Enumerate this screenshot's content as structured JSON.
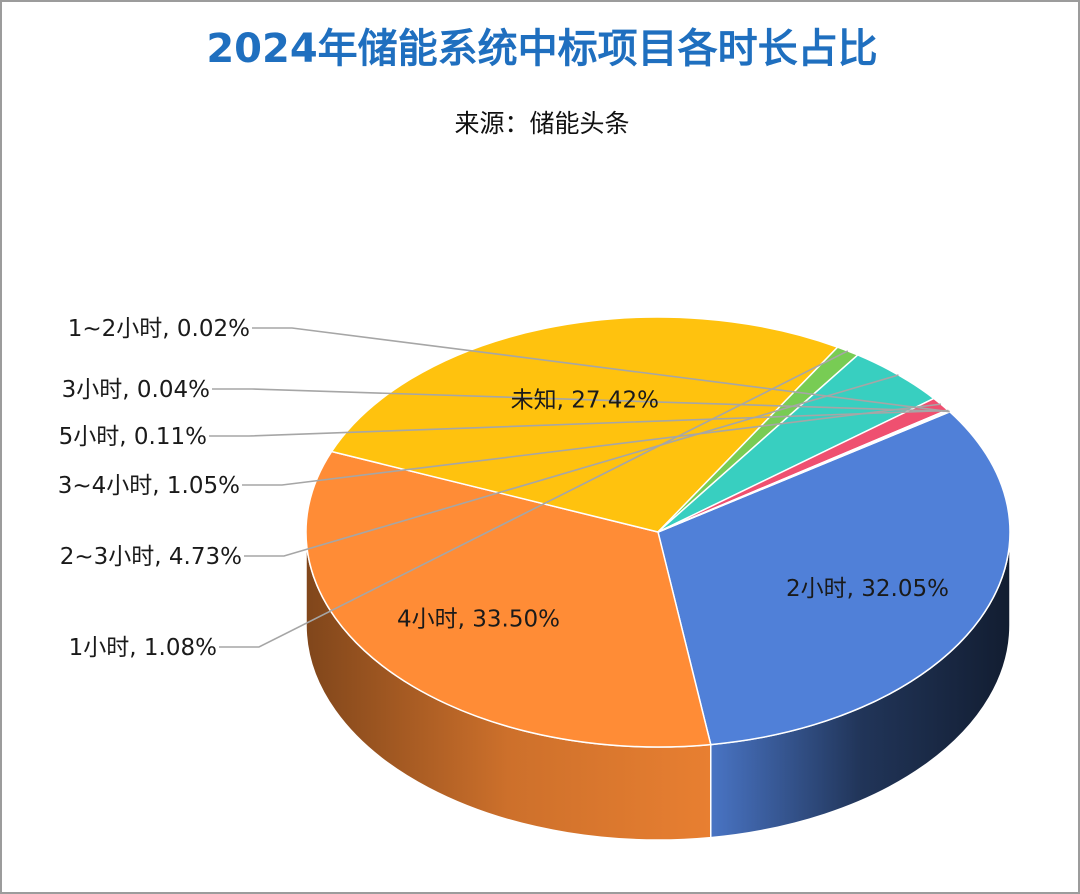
{
  "chart_data": {
    "type": "pie",
    "style": "3d",
    "title": "2024年储能系统中标项目各时长占比",
    "subtitle": "来源：储能头条",
    "slices": [
      {
        "name": "2小时",
        "value": 32.05,
        "label": "2小时, 32.05%",
        "color": "#5080d8"
      },
      {
        "name": "4小时",
        "value": 33.5,
        "label": "4小时, 33.50%",
        "color": "#ff8c36"
      },
      {
        "name": "未知",
        "value": 27.42,
        "label": "未知, 27.42%",
        "color": "#ffc20e"
      },
      {
        "name": "1小时",
        "value": 1.08,
        "label": "1小时, 1.08%",
        "color": "#78cc54"
      },
      {
        "name": "2~3小时",
        "value": 4.73,
        "label": "2~3小时, 4.73%",
        "color": "#38cfc0"
      },
      {
        "name": "3~4小时",
        "value": 1.05,
        "label": "3~4小时, 1.05%",
        "color": "#ef5070"
      },
      {
        "name": "5小时",
        "value": 0.11,
        "label": "5小时, 0.11%",
        "color": "#9966cc"
      },
      {
        "name": "3小时",
        "value": 0.04,
        "label": "3小时, 0.04%",
        "color": "#2f5fa8"
      },
      {
        "name": "1~2小时",
        "value": 0.02,
        "label": "1~2小时, 0.02%",
        "color": "#a0a0a0"
      }
    ],
    "legend": "none",
    "label_position": "inside for large slices, outside left with leader lines for small slices"
  }
}
